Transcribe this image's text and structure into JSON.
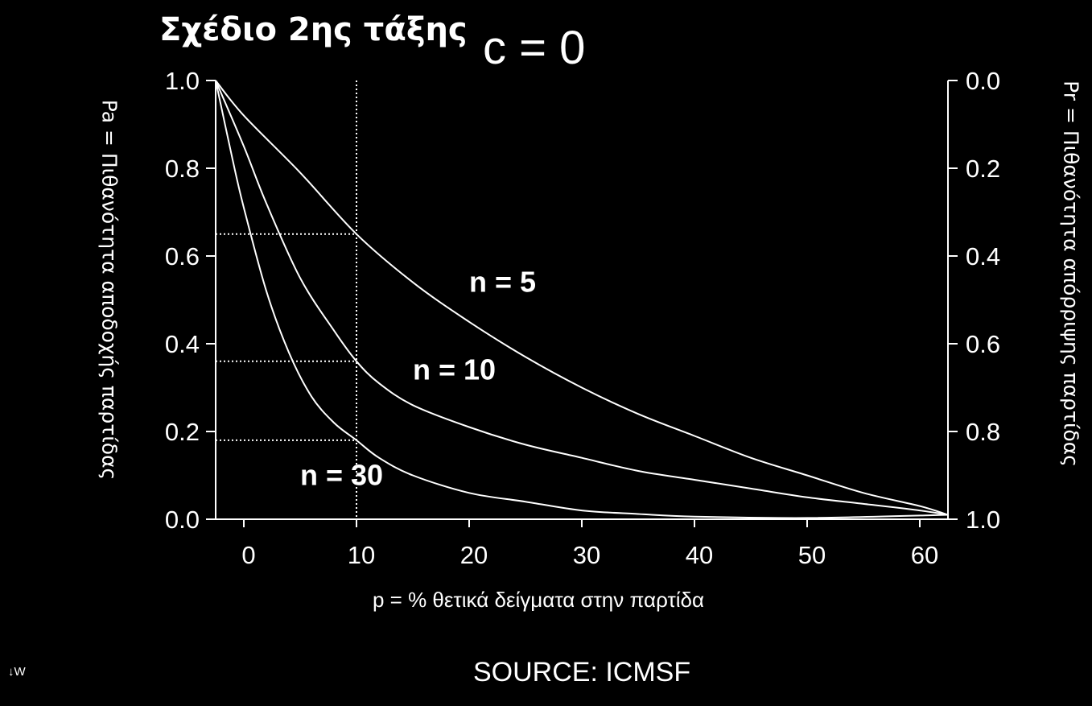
{
  "header": {
    "plan_title": "Σχέδιο 2ης τάξης",
    "c_label": "c = 0"
  },
  "footer": {
    "source": "SOURCE:   ICMSF",
    "corner_mark": "↓W"
  },
  "chart_data": {
    "type": "line",
    "xlabel": "p = % θετικά δείγματα στην παρτίδα",
    "ylabel_left": "Pa = Πιθανότητα αποδοχής παρτίδας",
    "ylabel_right": "Pr = Πιθανότητα απόρριψης παρτίδας",
    "xlim": [
      -2.5,
      62.5
    ],
    "ylim": [
      0,
      1
    ],
    "x_ticks": [
      "0",
      "10",
      "20",
      "30",
      "40",
      "50",
      "60"
    ],
    "y_ticks_left": [
      "0.0",
      "0.2",
      "0.4",
      "0.6",
      "0.8",
      "1.0"
    ],
    "y_ticks_right": [
      "1.0",
      "0.8",
      "0.6",
      "0.4",
      "0.2",
      "0.0"
    ],
    "grid": false,
    "reference_x": 10,
    "reference_y": [
      0.65,
      0.36,
      0.18
    ],
    "series": [
      {
        "name": "n = 5",
        "x": [
          -2.5,
          0,
          5,
          10,
          15,
          20,
          25,
          30,
          35,
          40,
          45,
          50,
          55,
          60,
          62.5
        ],
        "y": [
          1.0,
          0.92,
          0.79,
          0.65,
          0.54,
          0.45,
          0.37,
          0.3,
          0.24,
          0.19,
          0.14,
          0.1,
          0.06,
          0.03,
          0.01
        ]
      },
      {
        "name": "n = 10",
        "x": [
          -2.5,
          0,
          2,
          5,
          8,
          10,
          12,
          15,
          20,
          25,
          30,
          35,
          40,
          45,
          50,
          55,
          60,
          62.5
        ],
        "y": [
          1.0,
          0.85,
          0.72,
          0.55,
          0.43,
          0.36,
          0.31,
          0.26,
          0.21,
          0.17,
          0.14,
          0.11,
          0.09,
          0.07,
          0.05,
          0.035,
          0.02,
          0.01
        ]
      },
      {
        "name": "n = 30",
        "x": [
          -2.5,
          -1,
          0,
          2,
          4,
          6,
          8,
          10,
          12,
          15,
          20,
          25,
          30,
          35,
          40,
          50,
          62.5
        ],
        "y": [
          1.0,
          0.82,
          0.71,
          0.52,
          0.38,
          0.28,
          0.22,
          0.18,
          0.14,
          0.1,
          0.06,
          0.04,
          0.02,
          0.012,
          0.006,
          0.003,
          0.01
        ]
      }
    ],
    "series_label_positions_data": [
      {
        "text": "n = 5",
        "x": 20,
        "y": 0.54
      },
      {
        "text": "n = 10",
        "x": 15,
        "y": 0.34
      },
      {
        "text": "n = 30",
        "x": 5,
        "y": 0.1
      }
    ]
  }
}
